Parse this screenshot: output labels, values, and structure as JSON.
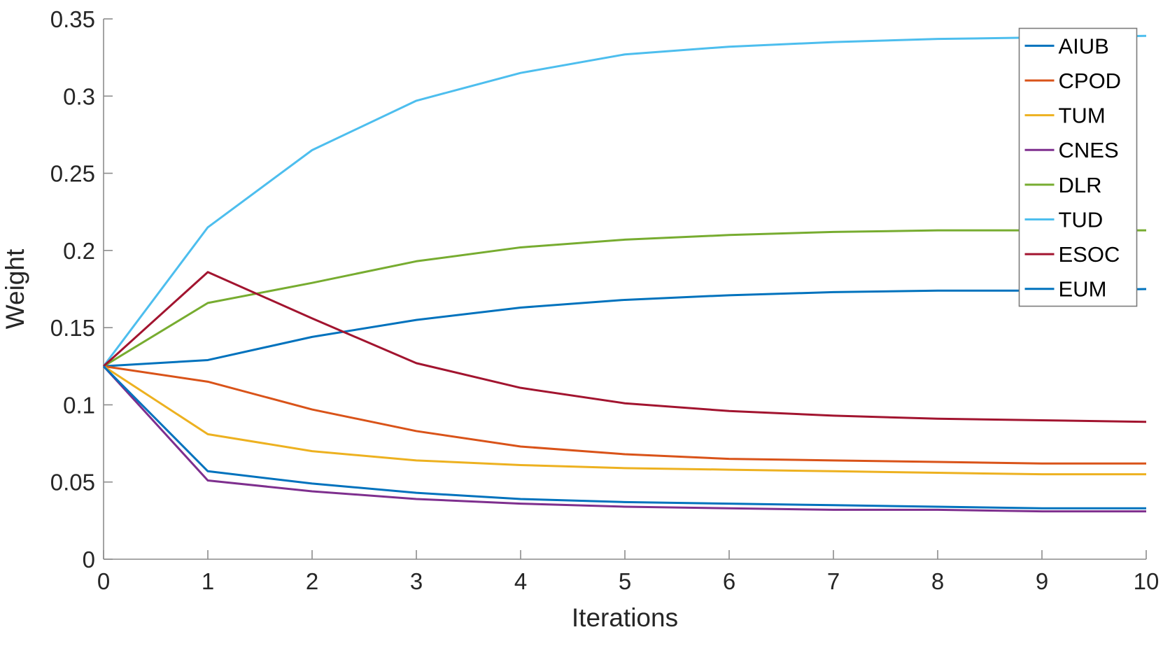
{
  "chart_data": {
    "type": "line",
    "title": "",
    "xlabel": "Iterations",
    "ylabel": "Weight",
    "xlim": [
      0,
      10
    ],
    "ylim": [
      0,
      0.35
    ],
    "x_ticks": [
      0,
      1,
      2,
      3,
      4,
      5,
      6,
      7,
      8,
      9,
      10
    ],
    "x_tick_labels": [
      "0",
      "1",
      "2",
      "3",
      "4",
      "5",
      "6",
      "7",
      "8",
      "9",
      "10"
    ],
    "y_ticks": [
      0,
      0.05,
      0.1,
      0.15,
      0.2,
      0.25,
      0.3,
      0.35
    ],
    "y_tick_labels": [
      "0",
      "0.05",
      "0.1",
      "0.15",
      "0.2",
      "0.25",
      "0.3",
      "0.35"
    ],
    "grid": false,
    "legend_position": "top-right",
    "x": [
      0,
      1,
      2,
      3,
      4,
      5,
      6,
      7,
      8,
      9,
      10
    ],
    "series": [
      {
        "name": "AIUB",
        "color": "#0072BD",
        "values": [
          0.125,
          0.129,
          0.144,
          0.155,
          0.163,
          0.168,
          0.171,
          0.173,
          0.174,
          0.174,
          0.175
        ]
      },
      {
        "name": "CPOD",
        "color": "#D95319",
        "values": [
          0.125,
          0.115,
          0.097,
          0.083,
          0.073,
          0.068,
          0.065,
          0.064,
          0.063,
          0.062,
          0.062
        ]
      },
      {
        "name": "TUM",
        "color": "#EDB120",
        "values": [
          0.125,
          0.081,
          0.07,
          0.064,
          0.061,
          0.059,
          0.058,
          0.057,
          0.056,
          0.055,
          0.055
        ]
      },
      {
        "name": "CNES",
        "color": "#7E2F8E",
        "values": [
          0.125,
          0.051,
          0.044,
          0.039,
          0.036,
          0.034,
          0.033,
          0.032,
          0.032,
          0.031,
          0.031
        ]
      },
      {
        "name": "DLR",
        "color": "#77AC30",
        "values": [
          0.125,
          0.166,
          0.179,
          0.193,
          0.202,
          0.207,
          0.21,
          0.212,
          0.213,
          0.213,
          0.213
        ]
      },
      {
        "name": "TUD",
        "color": "#4DBEEE",
        "values": [
          0.125,
          0.215,
          0.265,
          0.297,
          0.315,
          0.327,
          0.332,
          0.335,
          0.337,
          0.338,
          0.339
        ]
      },
      {
        "name": "ESOC",
        "color": "#A2142F",
        "values": [
          0.125,
          0.186,
          0.156,
          0.127,
          0.111,
          0.101,
          0.096,
          0.093,
          0.091,
          0.09,
          0.089
        ]
      },
      {
        "name": "EUM",
        "color": "#0072BD",
        "values": [
          0.125,
          0.057,
          0.049,
          0.043,
          0.039,
          0.037,
          0.036,
          0.035,
          0.034,
          0.033,
          0.033
        ]
      }
    ]
  },
  "colors": {
    "axis": "#8c8c8c",
    "text": "#262626",
    "background": "#ffffff",
    "legend_border": "#7b7b7b",
    "legend_background": "#ffffff"
  }
}
